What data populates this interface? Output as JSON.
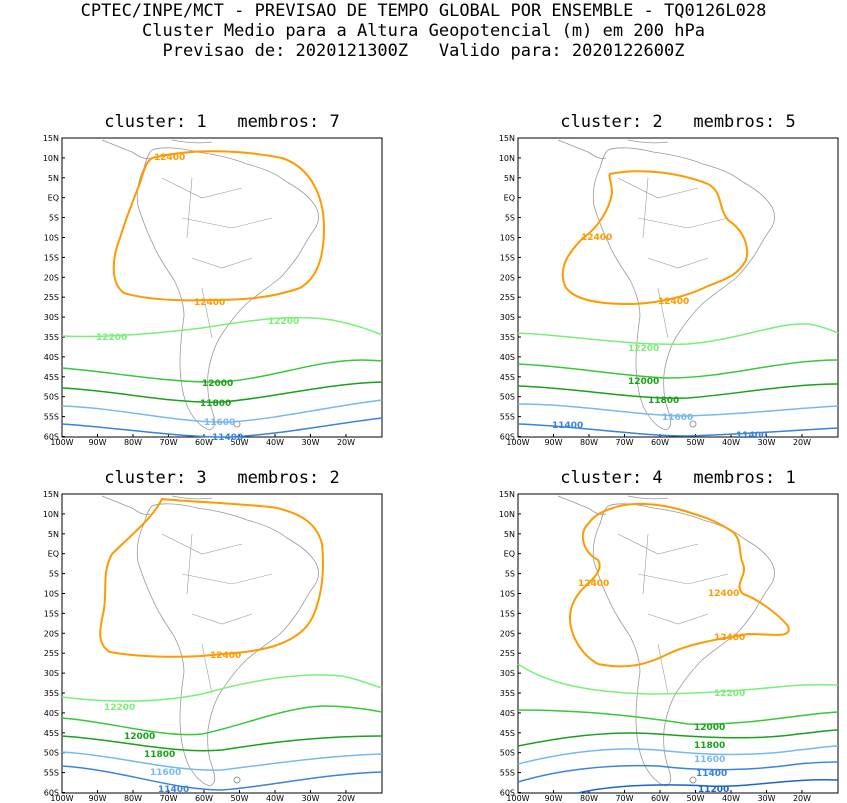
{
  "header": {
    "line1": "CPTEC/INPE/MCT - PREVISAO DE TEMPO GLOBAL POR ENSEMBLE - TQ0126L028",
    "line2": "Cluster Medio para a Altura Geopotencial (m) em 200 hPa",
    "line3": "Previsao de: 2020121300Z   Valido para: 2020122600Z"
  },
  "lat_labels": [
    "15N",
    "10N",
    "5N",
    "EQ",
    "5S",
    "10S",
    "15S",
    "20S",
    "25S",
    "30S",
    "35S",
    "40S",
    "45S",
    "50S",
    "55S",
    "60S"
  ],
  "lon_labels": [
    "100W",
    "90W",
    "80W",
    "70W",
    "60W",
    "50W",
    "40W",
    "30W",
    "20W"
  ],
  "colors": {
    "c12400": "#ff9a00",
    "c12200": "#78f078",
    "c12000": "#36c836",
    "c11800": "#1aa01a",
    "c11600": "#78b8f0",
    "c11400": "#3a82dc",
    "c11200": "#1a64c8",
    "coast": "#999999"
  },
  "panels": [
    {
      "title": "cluster: 1   membros: 7",
      "contour_labels": [
        "12400",
        "12400",
        "12200",
        "12200",
        "12000",
        "11800",
        "11600",
        "11400"
      ]
    },
    {
      "title": "cluster: 2   membros: 5",
      "contour_labels": [
        "12400",
        "12400",
        "12200",
        "12000",
        "11800",
        "11600",
        "11400",
        "11400"
      ]
    },
    {
      "title": "cluster: 3   membros: 2",
      "contour_labels": [
        "12400",
        "12200",
        "12000",
        "11800",
        "11600",
        "11400"
      ]
    },
    {
      "title": "cluster: 4   membros: 1",
      "contour_labels": [
        "12400",
        "12400",
        "12400",
        "12200",
        "12000",
        "11800",
        "11600",
        "11400",
        "11200"
      ]
    }
  ]
}
